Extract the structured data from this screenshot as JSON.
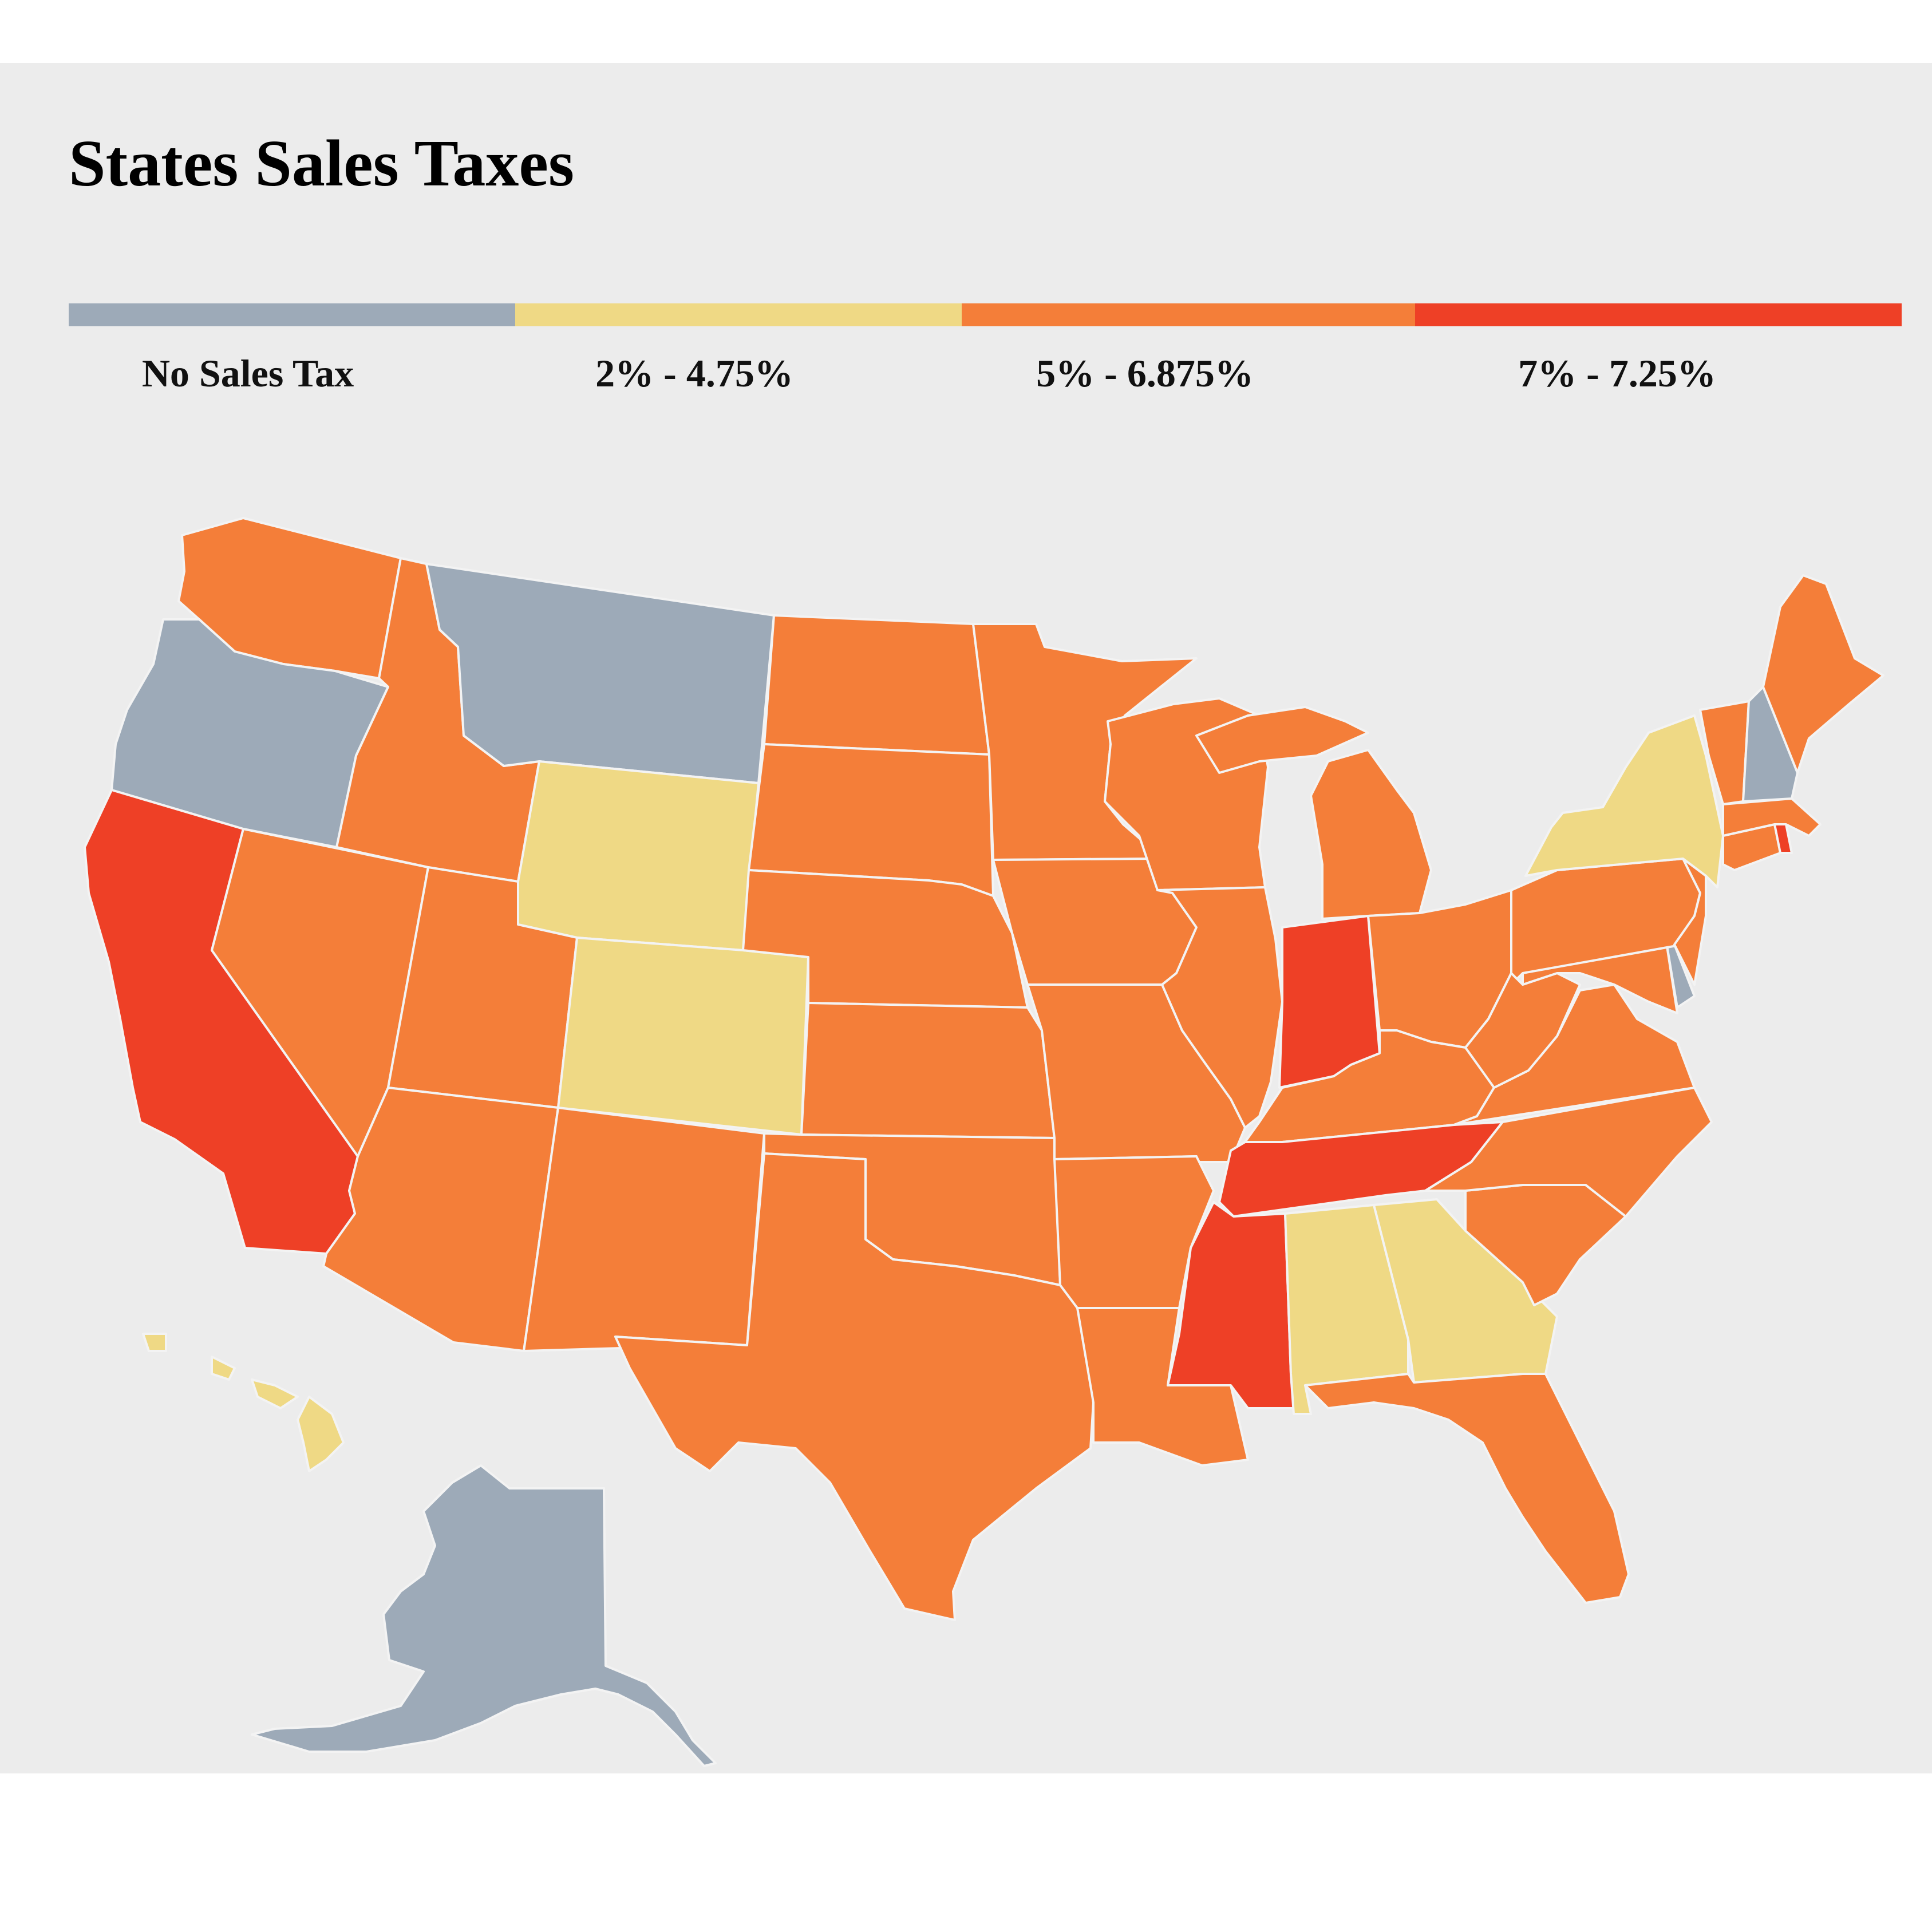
{
  "title": "States Sales Taxes",
  "legend": [
    {
      "label": "No Sales Tax",
      "color": "#9daab8",
      "category": "none"
    },
    {
      "label": "2% - 4.75%",
      "color": "#efd985",
      "category": "low"
    },
    {
      "label": "5% - 6.875%",
      "color": "#f47e39",
      "category": "mid"
    },
    {
      "label": "7% - 7.25%",
      "color": "#ee4026",
      "category": "high"
    }
  ],
  "map_style": {
    "background": "#ececec",
    "state_border": "#f3f3f3"
  },
  "states": {
    "WA": "mid",
    "OR": "none",
    "CA": "high",
    "NV": "mid",
    "ID": "mid",
    "MT": "none",
    "WY": "low",
    "UT": "mid",
    "AZ": "mid",
    "CO": "low",
    "NM": "mid",
    "ND": "mid",
    "SD": "mid",
    "NE": "mid",
    "KS": "mid",
    "OK": "mid",
    "TX": "mid",
    "MN": "mid",
    "IA": "mid",
    "MO": "mid",
    "AR": "mid",
    "LA": "mid",
    "WI": "mid",
    "IL": "mid",
    "MI": "mid",
    "IN": "high",
    "OH": "mid",
    "KY": "mid",
    "TN": "high",
    "MS": "high",
    "AL": "low",
    "GA": "low",
    "FL": "mid",
    "SC": "mid",
    "NC": "mid",
    "VA": "mid",
    "WV": "mid",
    "MD": "mid",
    "DE": "none",
    "PA": "mid",
    "NJ": "mid",
    "NY": "low",
    "CT": "mid",
    "RI": "high",
    "MA": "mid",
    "VT": "mid",
    "NH": "none",
    "ME": "mid",
    "AK": "none",
    "HI": "low"
  }
}
